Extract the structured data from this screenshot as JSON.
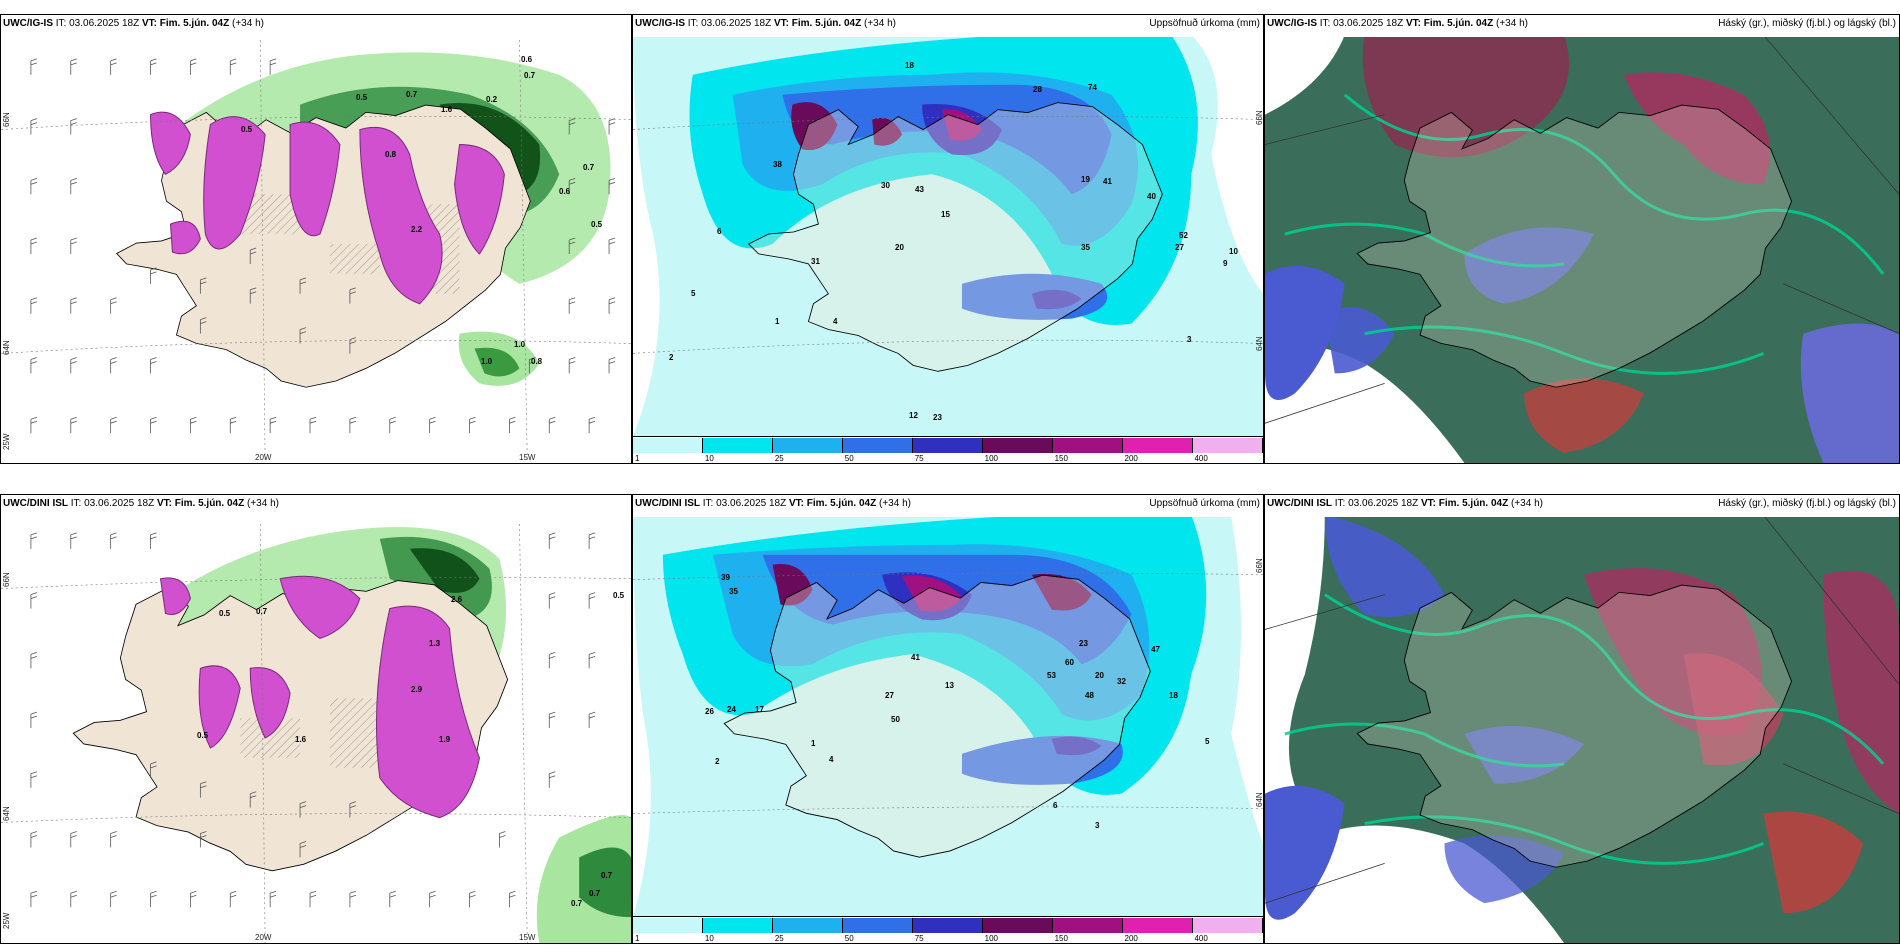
{
  "top_row": {
    "wind": {
      "model": "UWC/IG-IS",
      "it": "IT: 03.06.2025 18Z",
      "vt_label": "VT:",
      "vt": "Fim. 5.jún. 04Z",
      "lead": "(+34 h)",
      "lat_labels": [
        "66N",
        "64N",
        "25W"
      ],
      "lon_labels": [
        "20W",
        "15W"
      ],
      "values": [
        "0.5",
        "0.7",
        "0.6",
        "0.7",
        "0.2",
        "1.6",
        "0.5",
        "0.6",
        "0.5",
        "0.8",
        "2.2",
        "1.0",
        "0.8",
        "0.7",
        "1.0"
      ]
    },
    "precip": {
      "model": "UWC/IG-IS",
      "it": "IT: 03.06.2025 18Z",
      "vt_label": "VT:",
      "vt": "Fim. 5.jún. 04Z",
      "lead": "(+34 h)",
      "legend_title": "Uppsöfnuð úrkoma (mm)",
      "lat_labels": [
        "66N",
        "64N"
      ],
      "values": [
        "18",
        "28",
        "74",
        "38",
        "30",
        "43",
        "15",
        "19",
        "41",
        "40",
        "9",
        "10",
        "6",
        "5",
        "2",
        "1",
        "4",
        "12",
        "23",
        "35",
        "52",
        "27",
        "20",
        "31",
        "3"
      ],
      "colorbar": {
        "ticks": [
          "1",
          "10",
          "25",
          "50",
          "75",
          "100",
          "150",
          "200",
          "400"
        ],
        "colors": [
          "#c8f7f7",
          "#00e5ee",
          "#1fb0f0",
          "#2f6fe8",
          "#3030c0",
          "#6a0a5a",
          "#a01080",
          "#e020b0",
          "#f0b0f0"
        ]
      }
    },
    "cloud": {
      "model": "UWC/IG-IS",
      "it": "IT: 03.06.2025 18Z",
      "vt_label": "VT:",
      "vt": "Fim. 5.jún. 04Z",
      "lead": "(+34 h)",
      "legend_title": "Háský (gr.), miðský (fj.bl.) og lágský (bl.)"
    }
  },
  "bottom_row": {
    "wind": {
      "model": "UWC/DINI ISL",
      "it": "IT: 03.06.2025 18Z",
      "vt_label": "VT:",
      "vt": "Fim. 5.jún. 04Z",
      "lead": "(+34 h)",
      "lat_labels": [
        "66N",
        "64N",
        "25W"
      ],
      "lon_labels": [
        "20W",
        "15W"
      ],
      "values": [
        "0.5",
        "0.7",
        "0.5",
        "2.6",
        "1.3",
        "2.9",
        "0.5",
        "1.6",
        "0.7",
        "0.7",
        "0.7",
        "1.9"
      ]
    },
    "precip": {
      "model": "UWC/DINI ISL",
      "it": "IT: 03.06.2025 18Z",
      "vt_label": "VT:",
      "vt": "Fim. 5.jún. 04Z",
      "lead": "(+34 h)",
      "legend_title": "Uppsöfnuð úrkoma (mm)",
      "lat_labels": [
        "66N",
        "64N"
      ],
      "values": [
        "39",
        "35",
        "41",
        "13",
        "23",
        "60",
        "53",
        "20",
        "32",
        "47",
        "48",
        "26",
        "24",
        "17",
        "27",
        "2",
        "4",
        "1",
        "5",
        "3",
        "6",
        "18",
        "50"
      ],
      "colorbar": {
        "ticks": [
          "1",
          "10",
          "25",
          "50",
          "75",
          "100",
          "150",
          "200",
          "400"
        ],
        "colors": [
          "#c8f7f7",
          "#00e5ee",
          "#1fb0f0",
          "#2f6fe8",
          "#3030c0",
          "#6a0a5a",
          "#a01080",
          "#e020b0",
          "#f0b0f0"
        ]
      }
    },
    "cloud": {
      "model": "UWC/DINI ISL",
      "it": "IT: 03.06.2025 18Z",
      "vt_label": "VT:",
      "vt": "Fim. 5.jún. 04Z",
      "lead": "(+34 h)",
      "legend_title": "Háský (gr.), miðský (fj.bl.) og lágský (bl.)"
    }
  }
}
